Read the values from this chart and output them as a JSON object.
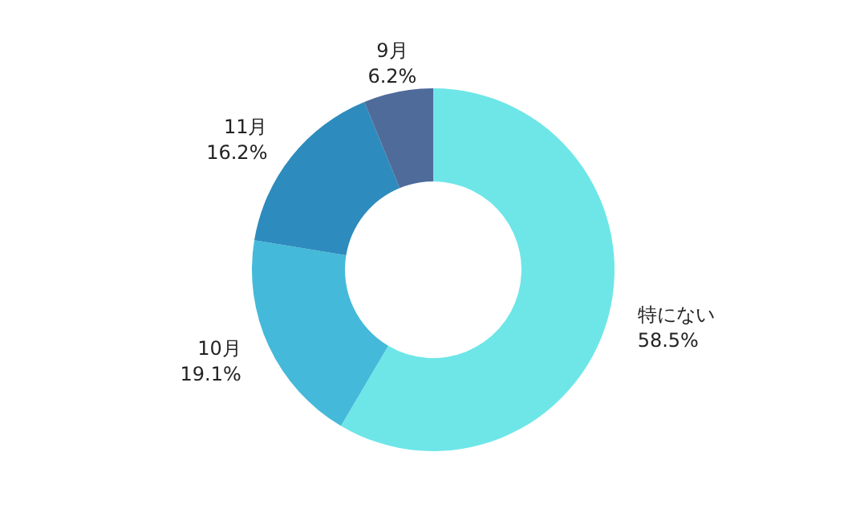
{
  "chart_data": {
    "type": "donut",
    "categories": [
      "特にない",
      "10月",
      "11月",
      "9月"
    ],
    "values": [
      58.5,
      19.1,
      16.2,
      6.2
    ],
    "value_labels": [
      "58.5%",
      "19.1%",
      "16.2%",
      "6.2%"
    ],
    "colors": [
      "#6ee6e8",
      "#45b9d9",
      "#2e8bbd",
      "#4e6b9a"
    ]
  }
}
